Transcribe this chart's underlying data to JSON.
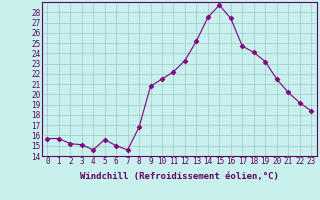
{
  "x": [
    0,
    1,
    2,
    3,
    4,
    5,
    6,
    7,
    8,
    9,
    10,
    11,
    12,
    13,
    14,
    15,
    16,
    17,
    18,
    19,
    20,
    21,
    22,
    23
  ],
  "y": [
    15.7,
    15.7,
    15.2,
    15.1,
    14.6,
    15.6,
    15.0,
    14.6,
    16.8,
    20.8,
    21.5,
    22.2,
    23.3,
    25.2,
    27.5,
    28.7,
    27.4,
    24.7,
    24.1,
    23.2,
    21.5,
    20.2,
    19.2,
    18.4
  ],
  "line_color": "#800080",
  "marker": "D",
  "marker_size": 2.5,
  "bg_color": "#c8f0ec",
  "grid_color": "#a0c8c8",
  "xlabel": "Windchill (Refroidissement éolien,°C)",
  "ylim": [
    14,
    29
  ],
  "xlim": [
    -0.5,
    23.5
  ],
  "yticks": [
    14,
    15,
    16,
    17,
    18,
    19,
    20,
    21,
    22,
    23,
    24,
    25,
    26,
    27,
    28
  ],
  "xticks": [
    0,
    1,
    2,
    3,
    4,
    5,
    6,
    7,
    8,
    9,
    10,
    11,
    12,
    13,
    14,
    15,
    16,
    17,
    18,
    19,
    20,
    21,
    22,
    23
  ],
  "tick_fontsize": 5.5,
  "xlabel_fontsize": 6.5,
  "spine_color": "#600060"
}
